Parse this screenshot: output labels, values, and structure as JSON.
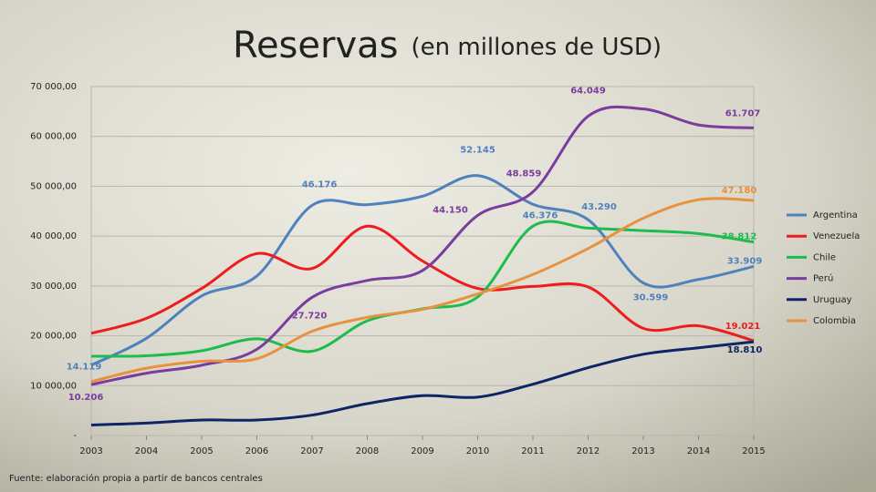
{
  "chart_data": {
    "type": "line",
    "title": "Reservas",
    "subtitle": "(en millones de USD)",
    "source": "Fuente: elaboración propia a partir de bancos centrales",
    "x": [
      2003,
      2004,
      2005,
      2006,
      2007,
      2008,
      2009,
      2010,
      2011,
      2012,
      2013,
      2014,
      2015
    ],
    "xlim": [
      2003,
      2015
    ],
    "xticks": [
      2003,
      2004,
      2005,
      2006,
      2007,
      2008,
      2009,
      2010,
      2011,
      2012,
      2013,
      2014,
      2015
    ],
    "ylim": [
      0,
      70000
    ],
    "yticks": [
      {
        "value": 0,
        "label": "-"
      },
      {
        "value": 10000,
        "label": "10 000,00"
      },
      {
        "value": 20000,
        "label": "20 000,00"
      },
      {
        "value": 30000,
        "label": "30 000,00"
      },
      {
        "value": 40000,
        "label": "40 000,00"
      },
      {
        "value": 50000,
        "label": "50 000,00"
      },
      {
        "value": 60000,
        "label": "60 000,00"
      },
      {
        "value": 70000,
        "label": "70 000,00"
      }
    ],
    "grid": true,
    "legend": "right",
    "series": [
      {
        "name": "Argentina",
        "color": "#4f81bd",
        "values": [
          14119,
          19500,
          28000,
          32000,
          46176,
          46300,
          48000,
          52145,
          46376,
          43290,
          30599,
          31300,
          33909
        ],
        "value_labels": [
          "14.119",
          null,
          null,
          null,
          "46.176",
          null,
          null,
          "52.145",
          "46.376",
          "43.290",
          "30.599",
          null,
          "33.909"
        ]
      },
      {
        "name": "Venezuela",
        "color": "#ee1c1c",
        "values": [
          20500,
          23500,
          29500,
          36500,
          33500,
          42000,
          35000,
          29500,
          29900,
          29800,
          21500,
          22000,
          19021
        ],
        "value_labels": [
          null,
          null,
          null,
          null,
          null,
          null,
          null,
          null,
          null,
          null,
          null,
          null,
          "19.021"
        ]
      },
      {
        "name": "Chile",
        "color": "#1ebc4c",
        "values": [
          15900,
          16000,
          17000,
          19400,
          16900,
          23000,
          25400,
          27800,
          42000,
          41600,
          41100,
          40500,
          38812
        ],
        "value_labels": [
          null,
          null,
          null,
          null,
          null,
          null,
          null,
          null,
          null,
          null,
          null,
          null,
          "38.812"
        ]
      },
      {
        "name": "Perú",
        "color": "#7a3c9e",
        "values": [
          10206,
          12500,
          14100,
          17300,
          27720,
          31100,
          33100,
          44150,
          48859,
          64049,
          65500,
          62300,
          61707
        ],
        "value_labels": [
          "10.206",
          null,
          null,
          null,
          "27.720",
          null,
          null,
          "44.150",
          "48.859",
          "64.049",
          null,
          null,
          "61.707"
        ]
      },
      {
        "name": "Uruguay",
        "color": "#0f2466",
        "values": [
          2100,
          2500,
          3100,
          3100,
          4100,
          6400,
          8000,
          7700,
          10300,
          13600,
          16300,
          17600,
          18810
        ],
        "value_labels": [
          null,
          null,
          null,
          null,
          null,
          null,
          null,
          null,
          null,
          null,
          null,
          null,
          "18.810"
        ]
      },
      {
        "name": "Colombia",
        "color": "#e8913f",
        "values": [
          10800,
          13500,
          14900,
          15400,
          20900,
          23700,
          25300,
          28400,
          32300,
          37500,
          43600,
          47300,
          47180
        ],
        "value_labels": [
          null,
          null,
          null,
          null,
          null,
          null,
          null,
          null,
          null,
          null,
          null,
          null,
          "47.180"
        ]
      }
    ]
  }
}
